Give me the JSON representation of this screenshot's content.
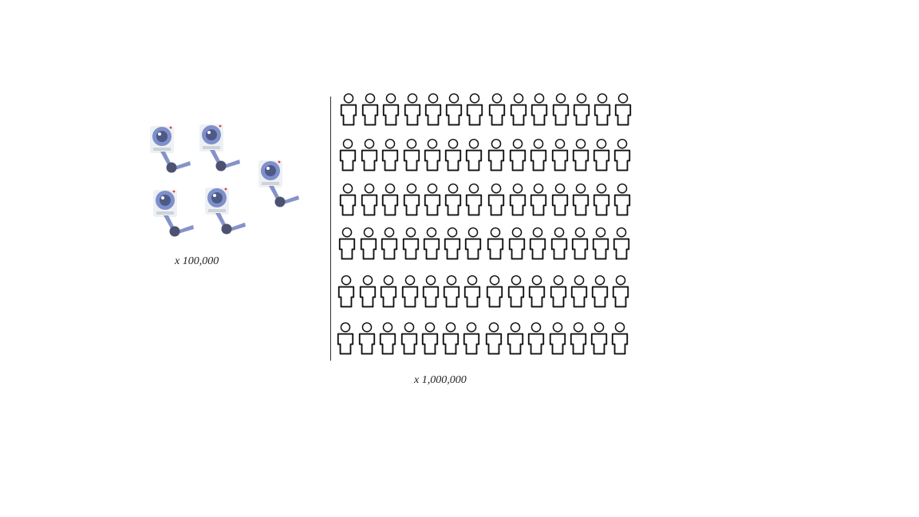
{
  "chart_data": {
    "type": "pictogram",
    "title": "",
    "groups": [
      {
        "icon": "security-camera-icon",
        "icon_count": 5,
        "multiplier_label": "x 100,000",
        "represents": 500000
      },
      {
        "icon": "person-icon",
        "icon_count": 84,
        "rows": 6,
        "columns": 14,
        "multiplier_label": "x 1,000,000",
        "represents": 84000000
      }
    ]
  },
  "colors": {
    "camera_body": "#eef1f3",
    "camera_lens_ring": "#7f8fcc",
    "camera_lens": "#4e5a86",
    "camera_arm": "#8593c9",
    "camera_joint": "#4d5270",
    "camera_dot": "#e0443a",
    "person_outline": "#111111",
    "axis_line": "#333333"
  }
}
